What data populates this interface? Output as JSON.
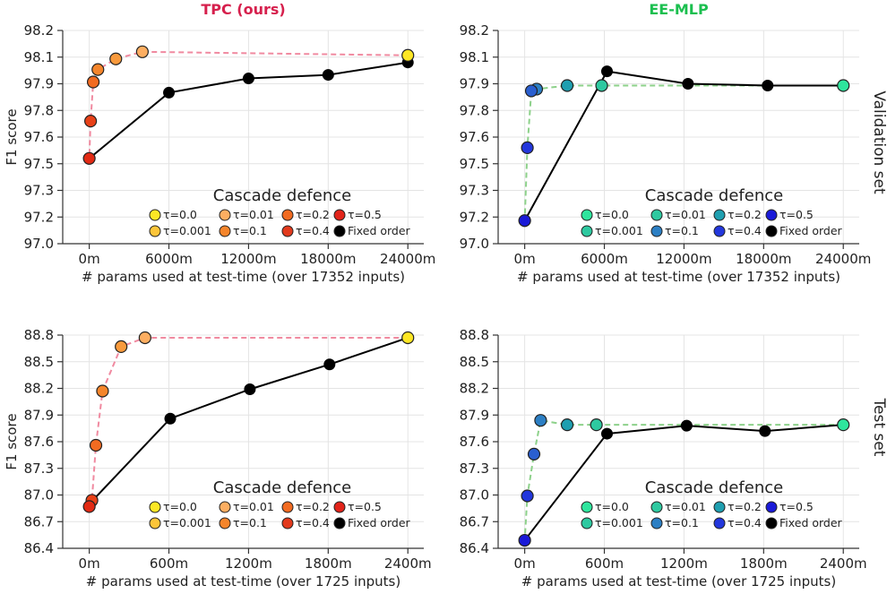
{
  "figure": {
    "row_labels": [
      "Validation set",
      "Test set"
    ],
    "legend_title": "Cascade defence",
    "legend_entries": [
      "τ=0.0",
      "τ=0.01",
      "τ=0.2",
      "τ=0.5",
      "τ=0.001",
      "τ=0.1",
      "τ=0.4",
      "Fixed order"
    ]
  },
  "chart_data": [
    {
      "type": "line",
      "title": "TPC (ours)",
      "title_color": "#d6204d",
      "xlabel": "# params used at test-time (over 17352 inputs)",
      "ylabel": "F1 score",
      "xlim": [
        -2000,
        25200
      ],
      "ylim": [
        97.0,
        98.2
      ],
      "xticks": [
        0,
        6000,
        12000,
        18000,
        24000
      ],
      "xtick_labels": [
        "0m",
        "6000m",
        "12000m",
        "18000m",
        "24000m"
      ],
      "yticks": [
        97.0,
        97.15,
        97.3,
        97.45,
        97.6,
        97.75,
        97.9,
        98.05,
        98.2
      ],
      "ytick_labels": [
        "97.0",
        "97.2",
        "97.3",
        "97.5",
        "97.6",
        "97.8",
        "97.9",
        "98.1",
        "98.2"
      ],
      "cascade": {
        "name": "Cascade defence",
        "line_color": "#f08aa0",
        "points": [
          {
            "x": 24000,
            "y": 98.06,
            "color": "#fde725"
          },
          {
            "x": 4000,
            "y": 98.08,
            "color": "#fdae61"
          },
          {
            "x": 2000,
            "y": 98.04,
            "color": "#f99a3c"
          },
          {
            "x": 650,
            "y": 97.98,
            "color": "#f5852b"
          },
          {
            "x": 300,
            "y": 97.91,
            "color": "#f26b21"
          },
          {
            "x": 100,
            "y": 97.69,
            "color": "#e84118"
          },
          {
            "x": 0,
            "y": 97.48,
            "color": "#e22a14"
          }
        ]
      },
      "fixed_order": {
        "name": "Fixed order",
        "color": "#000000",
        "points": [
          {
            "x": 0,
            "y": 97.48
          },
          {
            "x": 6000,
            "y": 97.85
          },
          {
            "x": 12000,
            "y": 97.93
          },
          {
            "x": 18000,
            "y": 97.95
          },
          {
            "x": 24000,
            "y": 98.02
          }
        ]
      },
      "legend_colors": [
        "#fde725",
        "#fdae61",
        "#f26b21",
        "#e2241a",
        "#fcc539",
        "#f5852b",
        "#e23a1d",
        "#000000"
      ]
    },
    {
      "type": "line",
      "title": "EE-MLP",
      "title_color": "#1bbf4f",
      "xlabel": "# params used at test-time (over 17352 inputs)",
      "ylabel": "",
      "xlim": [
        -2000,
        25200
      ],
      "ylim": [
        97.0,
        98.2
      ],
      "xticks": [
        0,
        6000,
        12000,
        18000,
        24000
      ],
      "xtick_labels": [
        "0m",
        "6000m",
        "12000m",
        "18000m",
        "24000m"
      ],
      "yticks": [
        97.0,
        97.15,
        97.3,
        97.45,
        97.6,
        97.75,
        97.9,
        98.05,
        98.2
      ],
      "ytick_labels": [
        "97.0",
        "97.2",
        "97.3",
        "97.5",
        "97.6",
        "97.8",
        "97.9",
        "98.1",
        "98.2"
      ],
      "cascade": {
        "name": "Cascade defence",
        "line_color": "#8dd18a",
        "points": [
          {
            "x": 24000,
            "y": 97.89,
            "color": "#2ee59d"
          },
          {
            "x": 5800,
            "y": 97.89,
            "color": "#2ec9a0"
          },
          {
            "x": 3200,
            "y": 97.89,
            "color": "#1f9fb0"
          },
          {
            "x": 900,
            "y": 97.87,
            "color": "#2c7fc4"
          },
          {
            "x": 500,
            "y": 97.86,
            "color": "#2a5fd0"
          },
          {
            "x": 200,
            "y": 97.54,
            "color": "#2337dc"
          },
          {
            "x": 0,
            "y": 97.13,
            "color": "#1a1ad8"
          }
        ]
      },
      "fixed_order": {
        "name": "Fixed order",
        "color": "#000000",
        "points": [
          {
            "x": 0,
            "y": 97.13
          },
          {
            "x": 6200,
            "y": 97.97
          },
          {
            "x": 12300,
            "y": 97.9
          },
          {
            "x": 18300,
            "y": 97.89
          },
          {
            "x": 24000,
            "y": 97.89
          }
        ]
      },
      "legend_colors": [
        "#2ee59d",
        "#2ec9a0",
        "#1f9fb0",
        "#1a1ad8",
        "#2ec9a0",
        "#2c7fc4",
        "#2337dc",
        "#000000"
      ]
    },
    {
      "type": "line",
      "title": "",
      "xlabel": "# params used at test-time (over 1725 inputs)",
      "ylabel": "F1 score",
      "xlim": [
        -200,
        2520
      ],
      "ylim": [
        86.4,
        88.8
      ],
      "xticks": [
        0,
        600,
        1200,
        1800,
        2400
      ],
      "xtick_labels": [
        "0m",
        "600m",
        "1200m",
        "1800m",
        "2400m"
      ],
      "yticks": [
        86.4,
        86.7,
        87.0,
        87.3,
        87.6,
        87.9,
        88.2,
        88.5,
        88.8
      ],
      "ytick_labels": [
        "86.4",
        "86.7",
        "87.0",
        "87.3",
        "87.6",
        "87.9",
        "88.2",
        "88.5",
        "88.8"
      ],
      "cascade": {
        "name": "Cascade defence",
        "line_color": "#f08aa0",
        "points": [
          {
            "x": 2400,
            "y": 88.77,
            "color": "#fde725"
          },
          {
            "x": 420,
            "y": 88.77,
            "color": "#fdae61"
          },
          {
            "x": 240,
            "y": 88.67,
            "color": "#f99a3c"
          },
          {
            "x": 100,
            "y": 88.17,
            "color": "#f5852b"
          },
          {
            "x": 50,
            "y": 87.56,
            "color": "#f26b21"
          },
          {
            "x": 20,
            "y": 86.94,
            "color": "#e84118"
          },
          {
            "x": 0,
            "y": 86.87,
            "color": "#e22a14"
          }
        ]
      },
      "fixed_order": {
        "name": "Fixed order",
        "color": "#000000",
        "points": [
          {
            "x": 20,
            "y": 86.93
          },
          {
            "x": 610,
            "y": 87.86
          },
          {
            "x": 1210,
            "y": 88.19
          },
          {
            "x": 1810,
            "y": 88.47
          },
          {
            "x": 2400,
            "y": 88.77
          }
        ]
      },
      "legend_colors": [
        "#fde725",
        "#fdae61",
        "#f26b21",
        "#e2241a",
        "#fcc539",
        "#f5852b",
        "#e23a1d",
        "#000000"
      ]
    },
    {
      "type": "line",
      "title": "",
      "xlabel": "# params used at test-time (over 1725 inputs)",
      "ylabel": "",
      "xlim": [
        -200,
        2520
      ],
      "ylim": [
        86.4,
        88.8
      ],
      "xticks": [
        0,
        600,
        1200,
        1800,
        2400
      ],
      "xtick_labels": [
        "0m",
        "600m",
        "1200m",
        "1800m",
        "2400m"
      ],
      "yticks": [
        86.4,
        86.7,
        87.0,
        87.3,
        87.6,
        87.9,
        88.2,
        88.5,
        88.8
      ],
      "ytick_labels": [
        "86.4",
        "86.7",
        "87.0",
        "87.3",
        "87.6",
        "87.9",
        "88.2",
        "88.5",
        "88.8"
      ],
      "cascade": {
        "name": "Cascade defence",
        "line_color": "#8dd18a",
        "points": [
          {
            "x": 2400,
            "y": 87.79,
            "color": "#2ee59d"
          },
          {
            "x": 540,
            "y": 87.79,
            "color": "#2ec9a0"
          },
          {
            "x": 320,
            "y": 87.79,
            "color": "#1f9fb0"
          },
          {
            "x": 120,
            "y": 87.84,
            "color": "#2c7fc4"
          },
          {
            "x": 70,
            "y": 87.46,
            "color": "#2a5fd0"
          },
          {
            "x": 20,
            "y": 86.99,
            "color": "#2337dc"
          },
          {
            "x": 0,
            "y": 86.49,
            "color": "#1a1ad8"
          }
        ]
      },
      "fixed_order": {
        "name": "Fixed order",
        "color": "#000000",
        "points": [
          {
            "x": 0,
            "y": 86.49
          },
          {
            "x": 620,
            "y": 87.69
          },
          {
            "x": 1220,
            "y": 87.78
          },
          {
            "x": 1810,
            "y": 87.72
          },
          {
            "x": 2400,
            "y": 87.79
          }
        ]
      },
      "legend_colors": [
        "#2ee59d",
        "#2ec9a0",
        "#1f9fb0",
        "#1a1ad8",
        "#2ec9a0",
        "#2c7fc4",
        "#2337dc",
        "#000000"
      ]
    }
  ]
}
